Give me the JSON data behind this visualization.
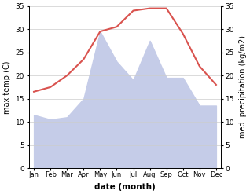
{
  "months": [
    "Jan",
    "Feb",
    "Mar",
    "Apr",
    "May",
    "Jun",
    "Jul",
    "Aug",
    "Sep",
    "Oct",
    "Nov",
    "Dec"
  ],
  "temp": [
    16.5,
    17.5,
    20.0,
    23.5,
    29.5,
    30.5,
    34.0,
    34.5,
    34.5,
    29.0,
    22.0,
    18.0
  ],
  "precip": [
    11.5,
    10.5,
    11.0,
    15.0,
    29.5,
    23.0,
    19.0,
    27.5,
    19.5,
    19.5,
    13.5,
    13.5
  ],
  "temp_color": "#d9534f",
  "precip_fill": "#c5cce8",
  "ylim_left": [
    0,
    35
  ],
  "ylim_right": [
    0,
    35
  ],
  "xlabel": "date (month)",
  "ylabel_left": "max temp (C)",
  "ylabel_right": "med. precipitation (kg/m2)",
  "bg_color": "#ffffff",
  "grid_color": "#cccccc",
  "yticks": [
    0,
    5,
    10,
    15,
    20,
    25,
    30,
    35
  ]
}
